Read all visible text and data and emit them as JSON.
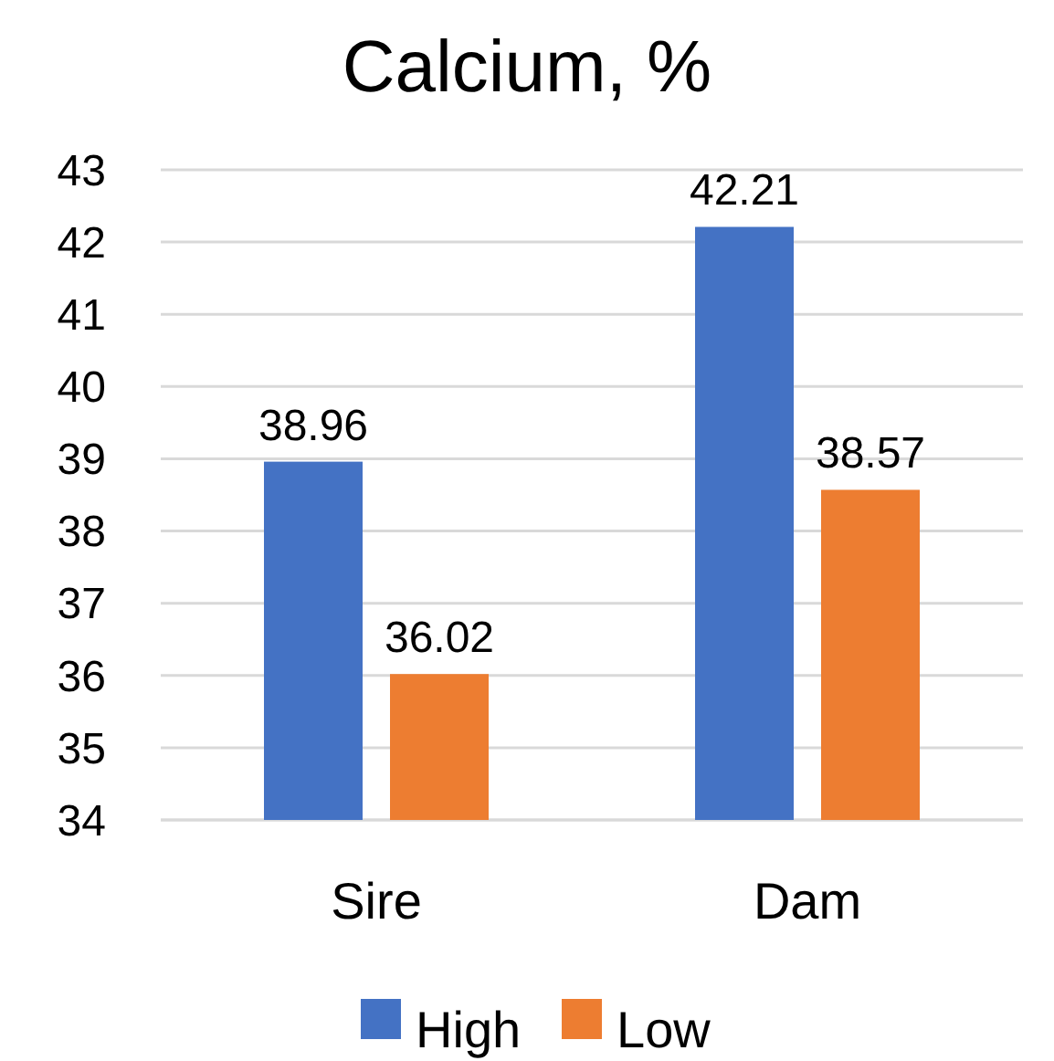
{
  "chart_data": {
    "type": "bar",
    "title": "Calcium, %",
    "categories": [
      "Sire",
      "Dam"
    ],
    "series": [
      {
        "name": "High",
        "color": "#4472c4",
        "values": [
          38.96,
          42.21
        ]
      },
      {
        "name": "Low",
        "color": "#ed7d31",
        "values": [
          36.02,
          38.57
        ]
      }
    ],
    "ylim": [
      34,
      43
    ],
    "yticks": [
      34,
      35,
      36,
      37,
      38,
      39,
      40,
      41,
      42,
      43
    ],
    "grid": "y",
    "legend": "bottom",
    "data_labels": true
  }
}
